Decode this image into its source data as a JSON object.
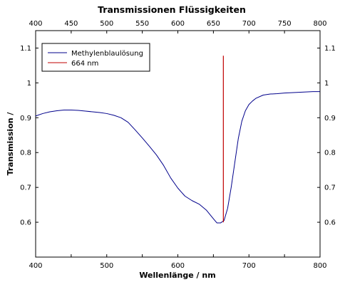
{
  "chart_data": {
    "type": "line",
    "title": "Transmissionen Flüssigkeiten",
    "xlabel": "Wellenlänge / nm",
    "ylabel": "Transmission /",
    "xlim": [
      400,
      800
    ],
    "ylim": [
      0.5,
      1.15
    ],
    "x_ticks": [
      400,
      450,
      500,
      550,
      600,
      650,
      700,
      750,
      800
    ],
    "x_tick_labels_top": [
      "400",
      "450",
      "500",
      "550",
      "600",
      "650",
      "700",
      "750",
      "800"
    ],
    "x_tick_labels_bottom": [
      "400",
      "500",
      "600",
      "700",
      "800"
    ],
    "x_tick_values_bottom": [
      400,
      500,
      600,
      700,
      800
    ],
    "y_ticks": [
      0.6,
      0.7,
      0.8,
      0.9,
      1.0,
      1.1
    ],
    "y_tick_labels": [
      "0.6",
      "0.7",
      "0.8",
      "0.9",
      "1",
      "1.1"
    ],
    "grid": false,
    "legend_position": "top-left",
    "series": [
      {
        "name": "Methylenblaulösung",
        "color": "#00008b",
        "x": [
          400,
          410,
          420,
          430,
          440,
          450,
          460,
          470,
          480,
          490,
          500,
          510,
          520,
          530,
          540,
          550,
          560,
          570,
          580,
          590,
          600,
          610,
          620,
          630,
          640,
          650,
          655,
          660,
          665,
          670,
          675,
          680,
          685,
          690,
          695,
          700,
          705,
          710,
          720,
          730,
          740,
          750,
          760,
          770,
          780,
          790,
          800
        ],
        "y": [
          0.905,
          0.912,
          0.917,
          0.92,
          0.922,
          0.922,
          0.921,
          0.919,
          0.917,
          0.915,
          0.912,
          0.907,
          0.9,
          0.887,
          0.865,
          0.842,
          0.818,
          0.793,
          0.763,
          0.727,
          0.698,
          0.675,
          0.662,
          0.652,
          0.635,
          0.61,
          0.598,
          0.598,
          0.605,
          0.64,
          0.7,
          0.77,
          0.84,
          0.89,
          0.92,
          0.938,
          0.948,
          0.956,
          0.965,
          0.968,
          0.969,
          0.971,
          0.972,
          0.973,
          0.974,
          0.975,
          0.975
        ]
      },
      {
        "name": "664 nm",
        "color": "#c00000",
        "x": [
          664,
          664
        ],
        "y": [
          0.6,
          1.078
        ]
      }
    ]
  }
}
